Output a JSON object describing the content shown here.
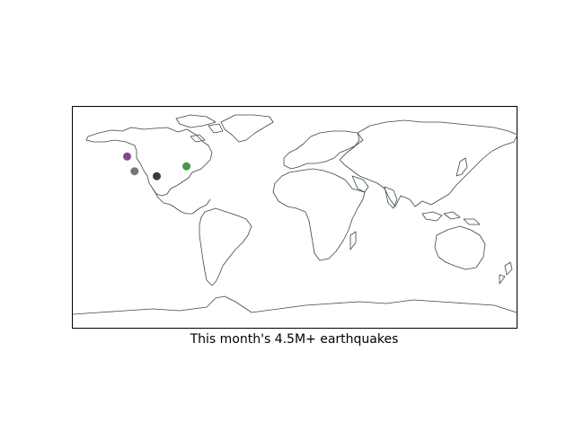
{
  "map": {
    "caption": "This month's 4.5M+ earthquakes",
    "projection": "equirectangular",
    "extent": {
      "lon": [
        -180,
        180
      ],
      "lat": [
        -90,
        90
      ]
    },
    "coastline_color": "#2f4f2f",
    "frame_color": "#000000",
    "events": [
      {
        "id": "eq-1",
        "lon": -136,
        "lat": 49,
        "color": "#5b1f66"
      },
      {
        "id": "eq-2",
        "lon": -130,
        "lat": 37,
        "color": "#555555"
      },
      {
        "id": "eq-3",
        "lon": -112,
        "lat": 33,
        "color": "#150315"
      },
      {
        "id": "eq-4",
        "lon": -88,
        "lat": 41,
        "color": "#1a7f1a"
      }
    ]
  }
}
